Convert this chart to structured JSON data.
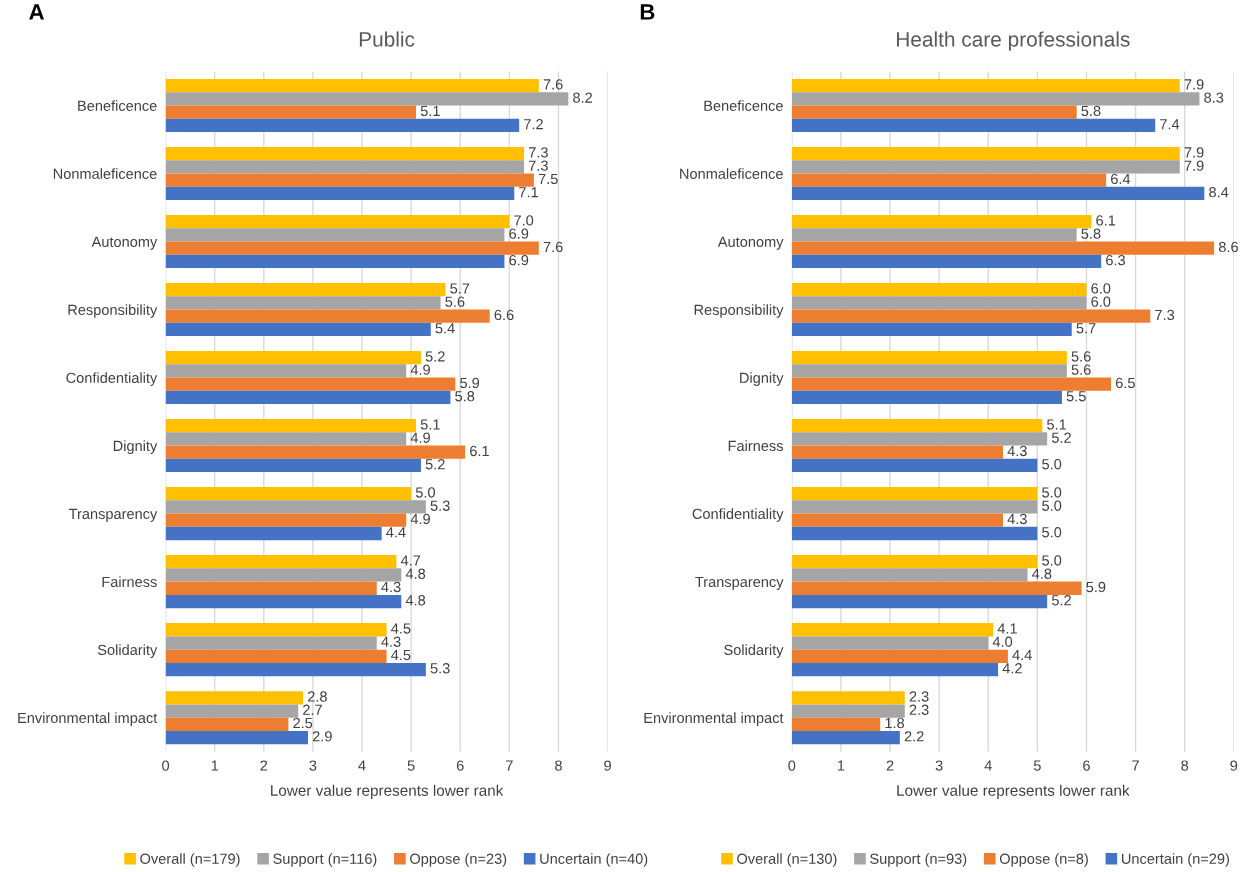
{
  "chart_data": [
    {
      "type": "bar",
      "orientation": "horizontal",
      "title": "Public",
      "xlabel": "Lower value represents lower rank",
      "annotations": [
        "A"
      ],
      "categories": [
        "Beneficence",
        "Nonmaleficence",
        "Autonomy",
        "Responsibility",
        "Confidentiality",
        "Dignity",
        "Transparency",
        "Fairness",
        "Solidarity",
        "Environmental impact"
      ],
      "series": [
        {
          "name": "Overall (n=179)",
          "color": "#ffc000",
          "values": [
            7.6,
            7.3,
            7.0,
            5.7,
            5.2,
            5.1,
            5.0,
            4.7,
            4.5,
            2.8
          ],
          "value_labels": [
            "7.6",
            "7.3",
            "7.0",
            "5.7",
            "5.2",
            "5.1",
            "5.0",
            "4.7",
            "4.5",
            "2.8"
          ]
        },
        {
          "name": "Support (n=116)",
          "color": "#a5a5a5",
          "values": [
            8.2,
            7.3,
            6.9,
            5.6,
            4.9,
            4.9,
            5.3,
            4.8,
            4.3,
            2.7
          ],
          "value_labels": [
            "8.2",
            "7.3",
            "6.9",
            "5.6",
            "4.9",
            "4.9",
            "5.3",
            "4.8",
            "4.3",
            "2.7"
          ]
        },
        {
          "name": "Oppose (n=23)",
          "color": "#ed7d31",
          "values": [
            5.1,
            7.5,
            7.6,
            6.6,
            5.9,
            6.1,
            4.9,
            4.3,
            4.5,
            2.5
          ],
          "value_labels": [
            "5.1",
            "7.5",
            "7.6",
            "6.6",
            "5.9",
            "6.1",
            "4.9",
            "4.3",
            "4.5",
            "2.5"
          ]
        },
        {
          "name": "Uncertain (n=40)",
          "color": "#4472c4",
          "values": [
            7.2,
            7.1,
            6.9,
            5.4,
            5.8,
            5.2,
            4.4,
            4.8,
            5.3,
            2.9
          ],
          "value_labels": [
            "7.2",
            "7.1",
            "6.9",
            "5.4",
            "5.8",
            "5.2",
            "4.4",
            "4.8",
            "5.3",
            "2.9"
          ]
        }
      ],
      "xlim": [
        0,
        9
      ],
      "xticks": [
        0,
        1,
        2,
        3,
        4,
        5,
        6,
        7,
        8,
        9
      ],
      "grid": "x",
      "legend": "bottom"
    },
    {
      "type": "bar",
      "orientation": "horizontal",
      "title": "Health care professionals",
      "xlabel": "Lower value represents lower rank",
      "annotations": [
        "B"
      ],
      "categories": [
        "Beneficence",
        "Nonmaleficence",
        "Autonomy",
        "Responsibility",
        "Dignity",
        "Fairness",
        "Confidentiality",
        "Transparency",
        "Solidarity",
        "Environmental impact"
      ],
      "series": [
        {
          "name": "Overall (n=130)",
          "color": "#ffc000",
          "values": [
            7.9,
            7.9,
            6.1,
            6.0,
            5.6,
            5.1,
            5.0,
            5.0,
            4.1,
            2.3
          ],
          "value_labels": [
            "7.9",
            "7.9",
            "6.1",
            "6.0",
            "5.6",
            "5.1",
            "5.0",
            "5.0",
            "4.1",
            "2.3"
          ]
        },
        {
          "name": "Support (n=93)",
          "color": "#a5a5a5",
          "values": [
            8.3,
            7.9,
            5.8,
            6.0,
            5.6,
            5.2,
            5.0,
            4.8,
            4.0,
            2.3
          ],
          "value_labels": [
            "8.3",
            "7.9",
            "5.8",
            "6.0",
            "5.6",
            "5.2",
            "5.0",
            "4.8",
            "4.0",
            "2.3"
          ]
        },
        {
          "name": "Oppose (n=8)",
          "color": "#ed7d31",
          "values": [
            5.8,
            6.4,
            8.6,
            7.3,
            6.5,
            4.3,
            4.3,
            5.9,
            4.4,
            1.8
          ],
          "value_labels": [
            "5.8",
            "6.4",
            "8.6",
            "7.3",
            "6.5",
            "4.3",
            "4.3",
            "5.9",
            "4.4",
            "1.8"
          ]
        },
        {
          "name": "Uncertain (n=29)",
          "color": "#4472c4",
          "values": [
            7.4,
            8.4,
            6.3,
            5.7,
            5.5,
            5.0,
            5.0,
            5.2,
            4.2,
            2.2
          ],
          "value_labels": [
            "7.4",
            "8.4",
            "6.3",
            "5.7",
            "5.5",
            "5.0",
            "5.0",
            "5.2",
            "4.2",
            "2.2"
          ]
        }
      ],
      "xlim": [
        0,
        9
      ],
      "xticks": [
        0,
        1,
        2,
        3,
        4,
        5,
        6,
        7,
        8,
        9
      ],
      "grid": "x",
      "legend": "bottom"
    }
  ]
}
